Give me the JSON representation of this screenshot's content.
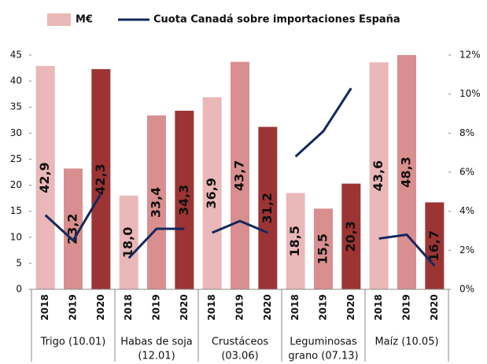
{
  "chart_data": {
    "type": "bar_line",
    "groups": [
      {
        "label": [
          "Trigo (10.01)"
        ],
        "categories": [
          "2018",
          "2019",
          "2020"
        ]
      },
      {
        "label": [
          "Habas de soja",
          "(12.01)"
        ],
        "categories": [
          "2018",
          "2019",
          "2020"
        ]
      },
      {
        "label": [
          "Crustáceos",
          "(03.06)"
        ],
        "categories": [
          "2018",
          "2019",
          "2020"
        ]
      },
      {
        "label": [
          "Leguminosas",
          "grano (07.13)"
        ],
        "categories": [
          "2018",
          "2019",
          "2020"
        ]
      },
      {
        "label": [
          "Maíz (10.05)"
        ],
        "categories": [
          "2018",
          "2019",
          "2020"
        ]
      }
    ],
    "series": [
      {
        "name": "M€",
        "color": "#eab8b8",
        "colors": [
          "#eab8b8",
          "#d98f8f",
          "#9c3434"
        ],
        "values": [
          42.9,
          23.2,
          42.3,
          18.0,
          33.4,
          34.3,
          36.9,
          43.7,
          31.2,
          18.5,
          15.5,
          20.3,
          43.6,
          48.3,
          16.7
        ],
        "value_labels": [
          "42,9",
          "23,2",
          "42,3",
          "18,0",
          "33,4",
          "34,3",
          "36,9",
          "43,7",
          "31,2",
          "18,5",
          "15,5",
          "20,3",
          "43,6",
          "48,3",
          "16,7"
        ]
      },
      {
        "name": "Cuota Canadá sobre importaciones España",
        "color": "#14285e",
        "axis": "y2",
        "values": [
          3.8,
          2.5,
          4.9,
          1.6,
          3.1,
          3.1,
          2.9,
          3.5,
          2.9,
          6.8,
          8.1,
          10.3,
          2.6,
          2.8,
          1.2
        ]
      }
    ],
    "ylim": [
      0,
      45
    ],
    "yticks": [
      0,
      5,
      10,
      15,
      20,
      25,
      30,
      35,
      40,
      45
    ],
    "y2lim": [
      0,
      12
    ],
    "y2ticks": [
      {
        "value": 0,
        "label": "0%"
      },
      {
        "value": 2,
        "label": "2%"
      },
      {
        "value": 4,
        "label": "4%"
      },
      {
        "value": 6,
        "label": "6%"
      },
      {
        "value": 8,
        "label": "8%"
      },
      {
        "value": 10,
        "label": "10%"
      },
      {
        "value": 12,
        "label": "12%"
      }
    ]
  }
}
